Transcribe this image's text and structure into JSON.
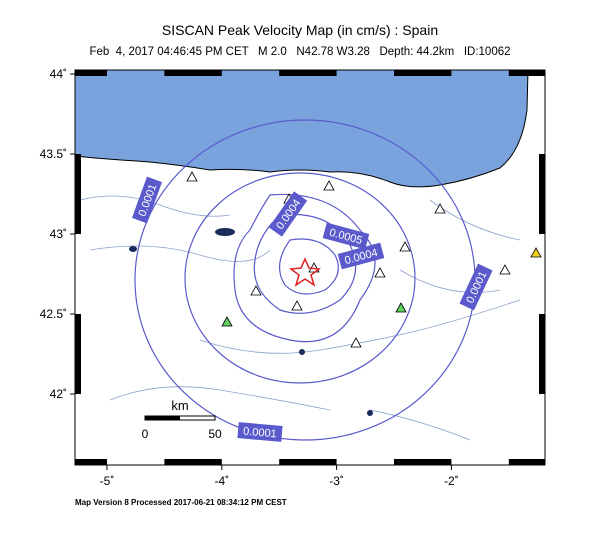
{
  "title": "SISCAN Peak Velocity Map (in cm/s) : Spain",
  "subtitle": "Feb  4, 2017 04:46:45 PM CET   M 2.0   N42.78 W3.28   Depth: 44.2km   ID:10062",
  "lon_ticks": [
    {
      "value": -5,
      "label": "-5˚"
    },
    {
      "value": -4,
      "label": "-4˚"
    },
    {
      "value": -3,
      "label": "-3˚"
    },
    {
      "value": -2,
      "label": "-2˚"
    }
  ],
  "lat_ticks": [
    {
      "value": 44,
      "label": "44˚"
    },
    {
      "value": 43.5,
      "label": "43.5˚"
    },
    {
      "value": 43,
      "label": "43˚"
    },
    {
      "value": 42.5,
      "label": "42.5˚"
    },
    {
      "value": 42,
      "label": "42˚"
    }
  ],
  "contour_labels": [
    "0.0001",
    "0.0004",
    "0.0005",
    "0.0004",
    "0.0001",
    "0.0001"
  ],
  "scale_bar": {
    "unit": "km",
    "labels": [
      "0",
      "50"
    ]
  },
  "footer": "Map Version 8 Processed 2017-06-21 08:34:12 PM CEST"
}
